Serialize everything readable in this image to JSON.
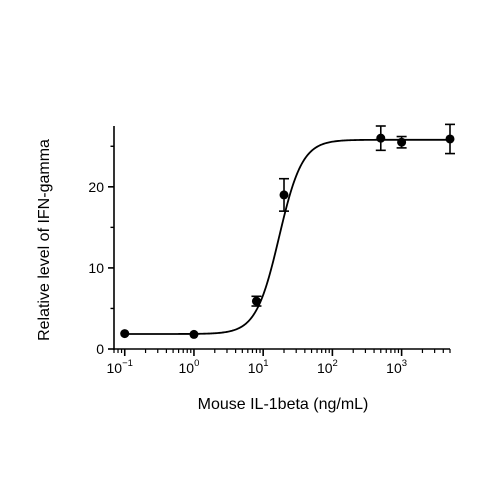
{
  "chart_data": {
    "type": "scatter",
    "xlabel": "Mouse IL-1beta (ng/mL)",
    "ylabel": "Relative level of IFN-gamma",
    "x_scale": "log10",
    "xlim": [
      0.07,
      5000
    ],
    "ylim": [
      0,
      27.5
    ],
    "x_ticks": [
      {
        "value": 0.1,
        "label_base": "10",
        "label_exp": "−1"
      },
      {
        "value": 1,
        "label_base": "10",
        "label_exp": "0"
      },
      {
        "value": 10,
        "label_base": "10",
        "label_exp": "1"
      },
      {
        "value": 100,
        "label_base": "10",
        "label_exp": "2"
      },
      {
        "value": 1000,
        "label_base": "10",
        "label_exp": "3"
      }
    ],
    "y_ticks": [
      {
        "value": 0,
        "label": "0"
      },
      {
        "value": 10,
        "label": "10"
      },
      {
        "value": 20,
        "label": "20"
      }
    ],
    "points": [
      {
        "x": 0.1,
        "y": 1.9,
        "err": 0
      },
      {
        "x": 1,
        "y": 1.8,
        "err": 0
      },
      {
        "x": 8,
        "y": 5.9,
        "err": 0.6
      },
      {
        "x": 20,
        "y": 19.0,
        "err": 2.0
      },
      {
        "x": 500,
        "y": 26.0,
        "err": 1.5
      },
      {
        "x": 1000,
        "y": 25.5,
        "err": 0.7
      },
      {
        "x": 5000,
        "y": 25.9,
        "err": 1.8
      }
    ],
    "fit": {
      "model": "four-parameter logistic",
      "bottom": 1.85,
      "top": 25.8,
      "ec50": 17,
      "hill": 2.6,
      "x_range": [
        0.1,
        5000
      ]
    },
    "grid": false,
    "legend": "none",
    "colors": {
      "marks": "#000000",
      "background": "#ffffff"
    }
  }
}
